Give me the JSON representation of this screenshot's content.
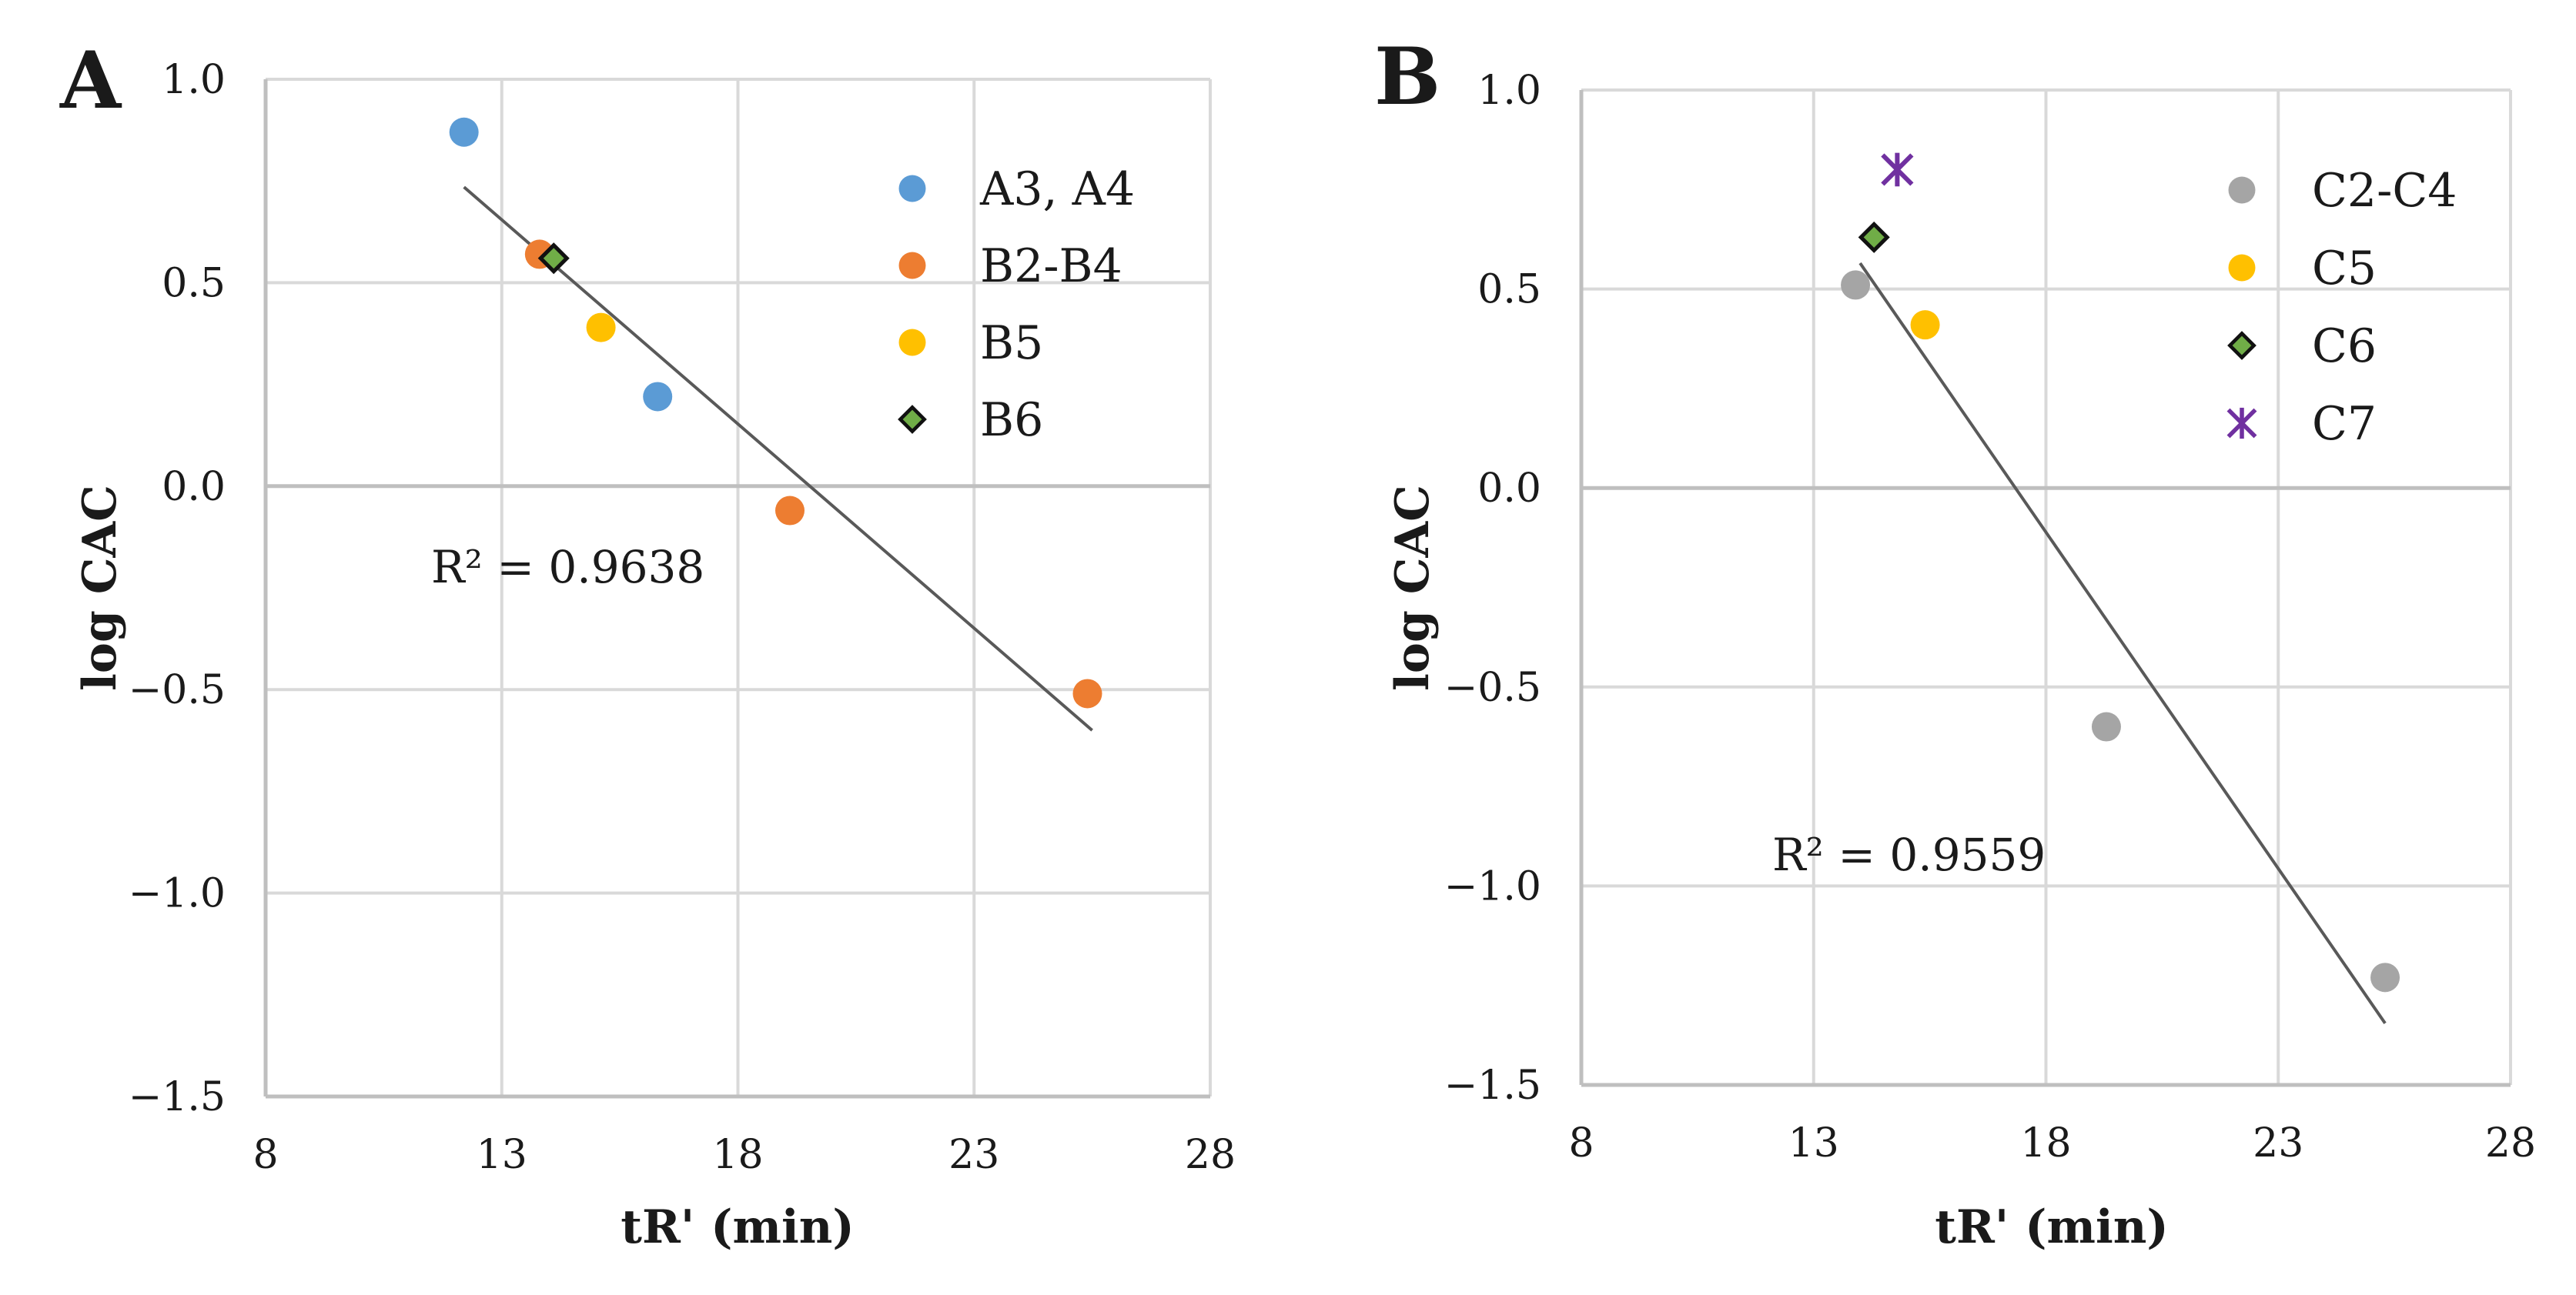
{
  "chart_data": [
    {
      "panel_label": "A",
      "type": "scatter",
      "xlabel": "tR' (min)",
      "ylabel": "log CAC",
      "xlim": [
        8,
        28
      ],
      "ylim": [
        -1.5,
        1.0
      ],
      "xticks": [
        8,
        13,
        18,
        23,
        28
      ],
      "yticks": [
        1.0,
        0.5,
        0.0,
        -0.5,
        -1.0,
        -1.5
      ],
      "xtick_labels": [
        "8",
        "13",
        "18",
        "23",
        "28"
      ],
      "ytick_labels": [
        "1.0",
        "0.5",
        "0.0",
        "−0.5",
        "−1.0",
        "−1.5"
      ],
      "grid": true,
      "legend_position": "top-right",
      "series": [
        {
          "name": "A3, A4",
          "marker": "circle",
          "color": "#5b9bd5",
          "x": [
            12.2,
            16.3
          ],
          "y": [
            0.87,
            0.22
          ]
        },
        {
          "name": "B2-B4",
          "marker": "circle",
          "color": "#ed7d31",
          "x": [
            13.8,
            19.1,
            25.4
          ],
          "y": [
            0.57,
            -0.06,
            -0.51
          ]
        },
        {
          "name": "B5",
          "marker": "circle",
          "color": "#ffc000",
          "x": [
            15.1
          ],
          "y": [
            0.39
          ]
        },
        {
          "name": "B6",
          "marker": "diamond",
          "color": "#70ad47",
          "x": [
            14.1
          ],
          "y": [
            0.56
          ]
        }
      ],
      "trendline": {
        "x": [
          12.2,
          25.5
        ],
        "y": [
          0.735,
          -0.6
        ],
        "color": "#595959"
      },
      "annotation": "R² = 0.9638"
    },
    {
      "panel_label": "B",
      "type": "scatter",
      "xlabel": "tR' (min)",
      "ylabel": "log CAC",
      "xlim": [
        8,
        28
      ],
      "ylim": [
        -1.5,
        1.0
      ],
      "xticks": [
        8,
        13,
        18,
        23,
        28
      ],
      "yticks": [
        1.0,
        0.5,
        0.0,
        -0.5,
        -1.0,
        -1.5
      ],
      "xtick_labels": [
        "8",
        "13",
        "18",
        "23",
        "28"
      ],
      "ytick_labels": [
        "1.0",
        "0.5",
        "0.0",
        "−0.5",
        "−1.0",
        "−1.5"
      ],
      "grid": true,
      "legend_position": "top-right",
      "series": [
        {
          "name": "C2-C4",
          "marker": "circle",
          "color": "#a5a5a5",
          "x": [
            13.9,
            19.3,
            25.3
          ],
          "y": [
            0.51,
            -0.6,
            -1.23
          ]
        },
        {
          "name": "C5",
          "marker": "circle",
          "color": "#ffc000",
          "x": [
            15.4
          ],
          "y": [
            0.41
          ]
        },
        {
          "name": "C6",
          "marker": "diamond",
          "color": "#70ad47",
          "x": [
            14.3
          ],
          "y": [
            0.63
          ]
        },
        {
          "name": "C7",
          "marker": "asterisk",
          "color": "#7030a0",
          "x": [
            14.8
          ],
          "y": [
            0.8
          ]
        }
      ],
      "trendline": {
        "x": [
          14.0,
          25.3
        ],
        "y": [
          0.565,
          -1.345
        ],
        "color": "#595959"
      },
      "annotation": "R² = 0.9559"
    }
  ]
}
